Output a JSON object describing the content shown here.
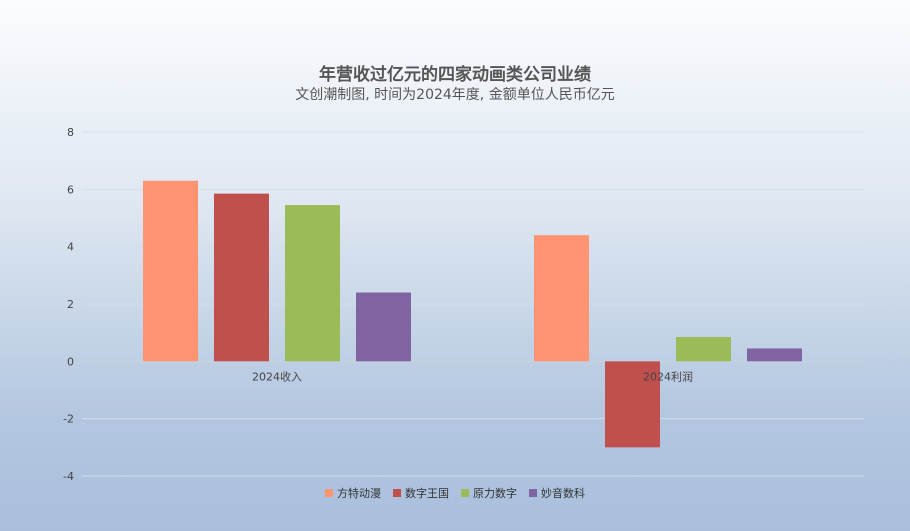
{
  "chart_data": {
    "type": "bar",
    "title": "年营收过亿元的四家动画类公司业绩",
    "subtitle": "文创潮制图, 时间为2024年度, 金额单位人民币亿元",
    "categories": [
      "2024收入",
      "2024利润"
    ],
    "series": [
      {
        "name": "方特动漫",
        "color": "#ff9472",
        "values": [
          6.3,
          4.4
        ]
      },
      {
        "name": "数字王国",
        "color": "#c0504d",
        "values": [
          5.85,
          -3.0
        ]
      },
      {
        "name": "原力数字",
        "color": "#9bbb59",
        "values": [
          5.45,
          0.85
        ]
      },
      {
        "name": "妙音数科",
        "color": "#8064a2",
        "values": [
          2.4,
          0.45
        ]
      }
    ],
    "ylim": [
      -4,
      8
    ],
    "yticks": [
      -4,
      -2,
      0,
      2,
      4,
      6,
      8
    ],
    "grid": true,
    "legend": "bottom"
  }
}
